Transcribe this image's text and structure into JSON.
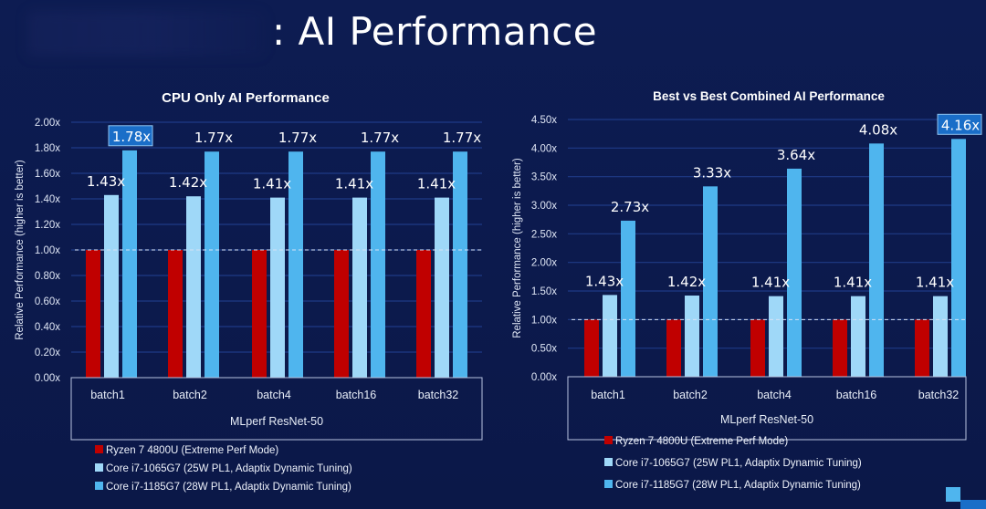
{
  "page": {
    "title": ": AI Performance"
  },
  "colors": {
    "background": "#0c1a4f",
    "ryzen": "#c00000",
    "core_1065": "#9fd8f8",
    "core_1185": "#4fb5ee",
    "highlight_box": "#1a6ec8",
    "grid": "#1e3a86",
    "text": "#ffffff"
  },
  "chart_data": [
    {
      "type": "bar",
      "title": "CPU Only AI Performance",
      "xlabel": "MLperf ResNet-50",
      "ylabel": "Relative Performance (higher is better)",
      "ylim": [
        0,
        2.0
      ],
      "yticks": [
        "0.00x",
        "0.20x",
        "0.40x",
        "0.60x",
        "0.80x",
        "1.00x",
        "1.20x",
        "1.40x",
        "1.60x",
        "1.80x",
        "2.00x"
      ],
      "ytick_values": [
        0,
        0.2,
        0.4,
        0.6,
        0.8,
        1.0,
        1.2,
        1.4,
        1.6,
        1.8,
        2.0
      ],
      "baseline": 1.0,
      "grid": true,
      "categories": [
        "batch1",
        "batch2",
        "batch4",
        "batch16",
        "batch32"
      ],
      "series": [
        {
          "name": "Ryzen 7 4800U (Extreme Perf Mode)",
          "values": [
            1.0,
            1.0,
            1.0,
            1.0,
            1.0
          ],
          "labels": [
            "",
            "",
            "",
            "",
            ""
          ]
        },
        {
          "name": "Core i7-1065G7 (25W PL1, Adaptix Dynamic Tuning)",
          "values": [
            1.43,
            1.42,
            1.41,
            1.41,
            1.41
          ],
          "labels": [
            "1.43x",
            "1.42x",
            "1.41x",
            "1.41x",
            "1.41x"
          ]
        },
        {
          "name": "Core i7-1185G7 (28W PL1, Adaptix Dynamic Tuning)",
          "values": [
            1.78,
            1.77,
            1.77,
            1.77,
            1.77
          ],
          "labels": [
            "1.78x",
            "1.77x",
            "1.77x",
            "1.77x",
            "1.77x"
          ]
        }
      ],
      "highlight": {
        "series": 2,
        "index": 0
      },
      "legend": [
        "Ryzen 7 4800U (Extreme Perf Mode)",
        "Core i7-1065G7 (25W PL1, Adaptix Dynamic Tuning)",
        "Core i7-1185G7 (28W PL1, Adaptix Dynamic Tuning)"
      ],
      "legend_position": "bottom-left"
    },
    {
      "type": "bar",
      "title": "Best vs Best Combined AI Performance",
      "xlabel": "MLperf ResNet-50",
      "ylabel": "Relative Performance (higher is better)",
      "ylim": [
        0,
        4.5
      ],
      "yticks": [
        "0.00x",
        "0.50x",
        "1.00x",
        "1.50x",
        "2.00x",
        "2.50x",
        "3.00x",
        "3.50x",
        "4.00x",
        "4.50x"
      ],
      "ytick_values": [
        0,
        0.5,
        1.0,
        1.5,
        2.0,
        2.5,
        3.0,
        3.5,
        4.0,
        4.5
      ],
      "baseline": 1.0,
      "grid": true,
      "categories": [
        "batch1",
        "batch2",
        "batch4",
        "batch16",
        "batch32"
      ],
      "series": [
        {
          "name": "Ryzen 7 4800U (Extreme Perf Mode)",
          "values": [
            1.0,
            1.0,
            1.0,
            1.0,
            1.0
          ],
          "labels": [
            "",
            "",
            "",
            "",
            ""
          ]
        },
        {
          "name": "Core i7-1065G7 (25W PL1, Adaptix Dynamic Tuning)",
          "values": [
            1.43,
            1.42,
            1.41,
            1.41,
            1.41
          ],
          "labels": [
            "1.43x",
            "1.42x",
            "1.41x",
            "1.41x",
            "1.41x"
          ]
        },
        {
          "name": "Core i7-1185G7 (28W PL1, Adaptix Dynamic Tuning)",
          "values": [
            2.73,
            3.33,
            3.64,
            4.08,
            4.16
          ],
          "labels": [
            "2.73x",
            "3.33x",
            "3.64x",
            "4.08x",
            "4.16x"
          ]
        }
      ],
      "highlight": {
        "series": 2,
        "index": 4
      },
      "legend": [
        "Ryzen 7 4800U (Extreme Perf Mode)",
        "Core i7-1065G7 (25W PL1, Adaptix Dynamic Tuning)",
        "Core i7-1185G7 (28W PL1, Adaptix Dynamic Tuning)"
      ],
      "legend_position": "bottom-left"
    }
  ]
}
